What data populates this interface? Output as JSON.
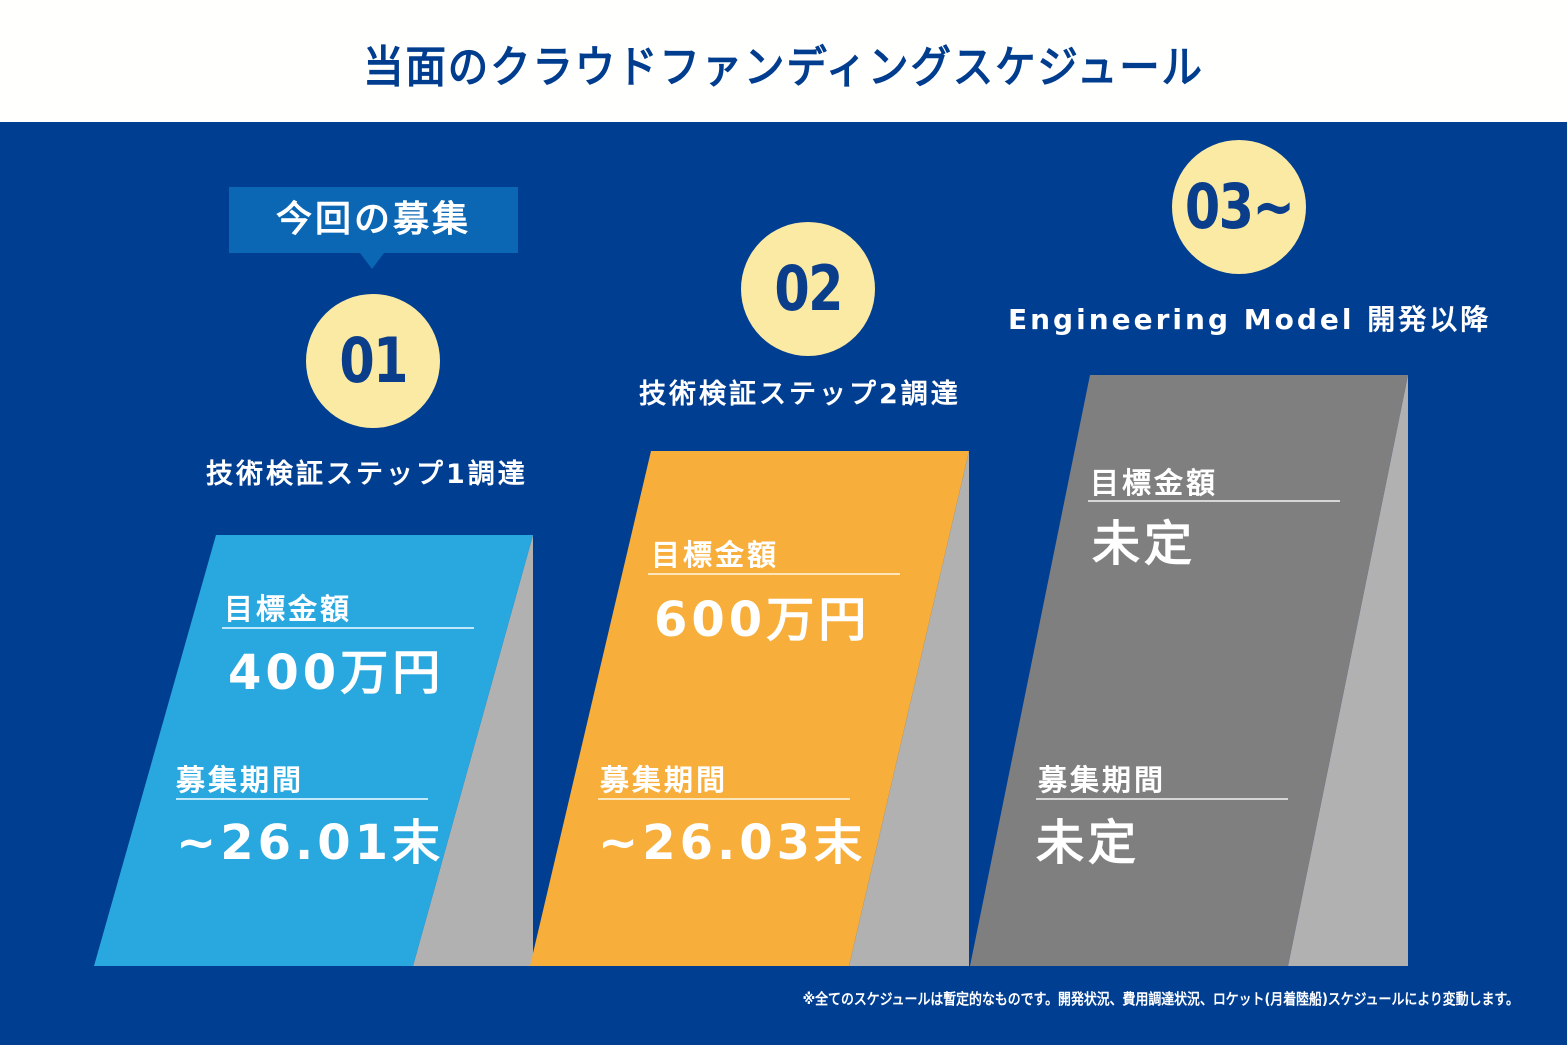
{
  "header": {
    "title": "当面のクラウドファンディングスケジュール"
  },
  "current_tag": {
    "label": "今回の募集"
  },
  "colors": {
    "panel_background": "#003e92",
    "title_text": "#003d8f",
    "badge_fill": "#faeaa4",
    "badge_text": "#0a3d8a",
    "tag_fill": "#0b67b4",
    "shadow_gray": "#b1b1b1"
  },
  "steps": [
    {
      "number": "01",
      "title": "技術検証ステップ1調達",
      "target_label": "目標金額",
      "target_value": "400万円",
      "period_label": "募集期間",
      "period_value": "~26.01末",
      "card_color": "#29a8df",
      "rule_color": "#bfe9fb"
    },
    {
      "number": "02",
      "title": "技術検証ステップ2調達",
      "target_label": "目標金額",
      "target_value": "600万円",
      "period_label": "募集期間",
      "period_value": "~26.03末",
      "card_color": "#f7ae3b",
      "rule_color": "#fde6b9"
    },
    {
      "number": "03~",
      "title": "Engineering Model 開発以降",
      "target_label": "目標金額",
      "target_value": "未定",
      "period_label": "募集期間",
      "period_value": "未定",
      "card_color": "#7f7f7f",
      "rule_color": "#d6d6d6"
    }
  ],
  "footnote": "※全てのスケジュールは暫定的なものです。開発状況、費用調達状況、ロケット(月着陸船)スケジュールにより変動します。"
}
